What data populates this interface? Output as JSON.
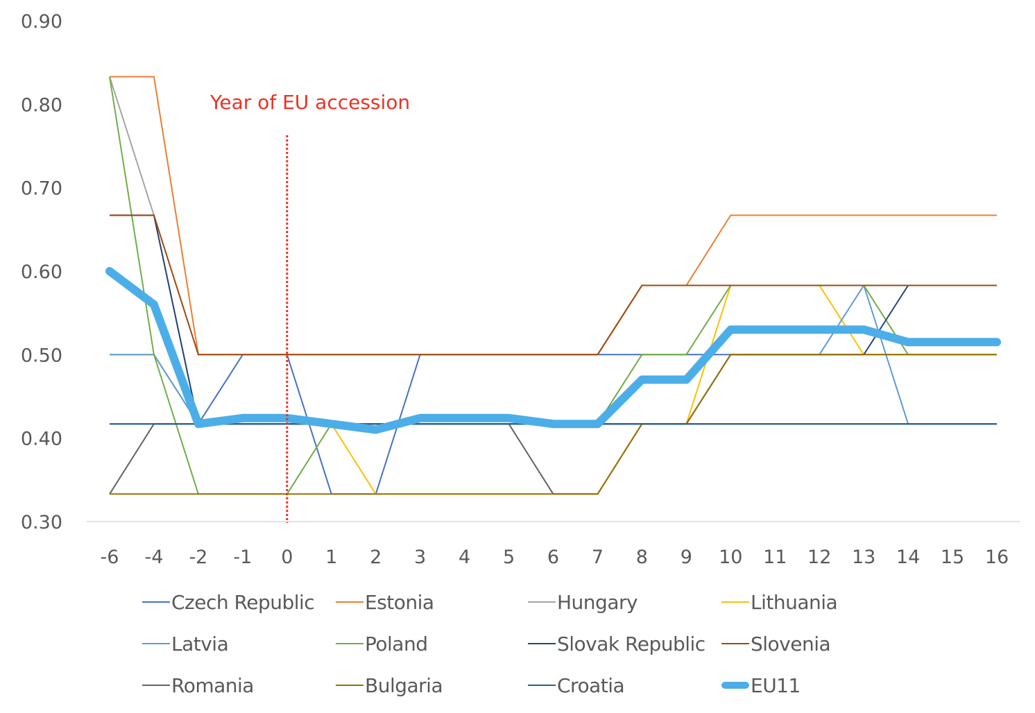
{
  "chart_data": {
    "type": "line",
    "title": "",
    "xlabel": "",
    "ylabel": "",
    "ylim": [
      0.3,
      0.9
    ],
    "yticks": [
      "0.90",
      "0.80",
      "0.70",
      "0.60",
      "0.50",
      "0.40",
      "0.30"
    ],
    "ytick_values": [
      0.9,
      0.8,
      0.7,
      0.6,
      0.5,
      0.4,
      0.3
    ],
    "categories": [
      "-6",
      "-4",
      "-2",
      "-1",
      "0",
      "1",
      "2",
      "3",
      "4",
      "5",
      "6",
      "7",
      "8",
      "9",
      "10",
      "11",
      "12",
      "13",
      "14",
      "15",
      "16"
    ],
    "grid": false,
    "legend_position": "bottom",
    "annotation": {
      "text": "Year of EU accession",
      "x_category": "0",
      "color": "#EE3124",
      "line_style": "dotted"
    },
    "series": [
      {
        "name": "Czech Republic",
        "color": "#4472C4",
        "width": "thin",
        "values": [
          0.417,
          0.417,
          0.417,
          0.5,
          0.5,
          0.333,
          0.333,
          0.5,
          0.5,
          0.5,
          0.5,
          0.5,
          0.5,
          0.5,
          0.5,
          0.5,
          0.5,
          0.5,
          0.5,
          0.5,
          0.5
        ]
      },
      {
        "name": "Estonia",
        "color": "#ED7D31",
        "width": "thin",
        "values": [
          0.833,
          0.833,
          0.5,
          0.5,
          0.5,
          0.5,
          0.5,
          0.5,
          0.5,
          0.5,
          0.5,
          0.5,
          0.583,
          0.583,
          0.667,
          0.667,
          0.667,
          0.667,
          0.667,
          0.667,
          0.667
        ]
      },
      {
        "name": "Hungary",
        "color": "#A5A5A5",
        "width": "thin",
        "values": [
          0.833,
          0.667,
          0.417,
          0.417,
          0.417,
          0.417,
          0.417,
          0.417,
          0.417,
          0.417,
          0.417,
          0.417,
          0.417,
          0.417,
          0.417,
          0.417,
          0.417,
          0.417,
          0.417,
          0.417,
          0.417
        ]
      },
      {
        "name": "Lithuania",
        "color": "#FFC000",
        "width": "thin",
        "values": [
          0.5,
          0.5,
          0.417,
          0.417,
          0.417,
          0.417,
          0.333,
          0.333,
          0.333,
          0.333,
          0.333,
          0.333,
          0.417,
          0.417,
          0.583,
          0.583,
          0.583,
          0.5,
          0.5,
          0.5,
          0.5
        ]
      },
      {
        "name": "Latvia",
        "color": "#5B9BD5",
        "width": "thin",
        "values": [
          0.5,
          0.5,
          0.417,
          0.417,
          0.417,
          0.417,
          0.417,
          0.417,
          0.417,
          0.417,
          0.417,
          0.417,
          0.417,
          0.417,
          0.5,
          0.5,
          0.5,
          0.583,
          0.417,
          0.417,
          0.417
        ]
      },
      {
        "name": "Poland",
        "color": "#70AD47",
        "width": "thin",
        "values": [
          0.833,
          0.5,
          0.333,
          0.333,
          0.333,
          0.417,
          0.417,
          0.417,
          0.417,
          0.417,
          0.417,
          0.417,
          0.5,
          0.5,
          0.583,
          0.583,
          0.583,
          0.583,
          0.5,
          0.5,
          0.5
        ]
      },
      {
        "name": "Slovak Republic",
        "color": "#264478",
        "width": "thin",
        "values": [
          0.667,
          0.667,
          0.417,
          0.417,
          0.417,
          0.417,
          0.417,
          0.417,
          0.417,
          0.417,
          0.417,
          0.417,
          0.417,
          0.417,
          0.5,
          0.5,
          0.5,
          0.5,
          0.583,
          0.583,
          0.583
        ]
      },
      {
        "name": "Slovenia",
        "color": "#9E480E",
        "width": "thin",
        "values": [
          0.667,
          0.667,
          0.5,
          0.5,
          0.5,
          0.5,
          0.5,
          0.5,
          0.5,
          0.5,
          0.5,
          0.5,
          0.583,
          0.583,
          0.583,
          0.583,
          0.583,
          0.583,
          0.583,
          0.583,
          0.583
        ]
      },
      {
        "name": "Romania",
        "color": "#636363",
        "width": "thin",
        "values": [
          0.333,
          0.417,
          0.417,
          0.417,
          0.417,
          0.417,
          0.417,
          0.417,
          0.417,
          0.417,
          0.333,
          0.333,
          0.417,
          0.417,
          0.417,
          0.417,
          0.417,
          0.417,
          0.417,
          0.417,
          0.417
        ]
      },
      {
        "name": "Bulgaria",
        "color": "#997300",
        "width": "thin",
        "values": [
          0.333,
          0.333,
          0.333,
          0.333,
          0.333,
          0.333,
          0.333,
          0.333,
          0.333,
          0.333,
          0.333,
          0.333,
          0.417,
          0.417,
          0.5,
          0.5,
          0.5,
          0.5,
          0.5,
          0.5,
          0.5
        ]
      },
      {
        "name": "Croatia",
        "color": "#255E91",
        "width": "thin",
        "values": [
          0.417,
          0.417,
          0.417,
          0.417,
          0.417,
          0.417,
          0.417,
          0.417,
          0.417,
          0.417,
          0.417,
          0.417,
          0.417,
          0.417,
          0.417,
          0.417,
          0.417,
          0.417,
          0.417,
          0.417,
          0.417
        ]
      },
      {
        "name": "EU11",
        "color": "#4BAEE8",
        "width": "thick",
        "values": [
          0.6,
          0.56,
          0.417,
          0.424,
          0.424,
          0.417,
          0.41,
          0.424,
          0.424,
          0.424,
          0.417,
          0.417,
          0.47,
          0.47,
          0.53,
          0.53,
          0.53,
          0.53,
          0.515,
          0.515,
          0.515
        ]
      }
    ]
  }
}
